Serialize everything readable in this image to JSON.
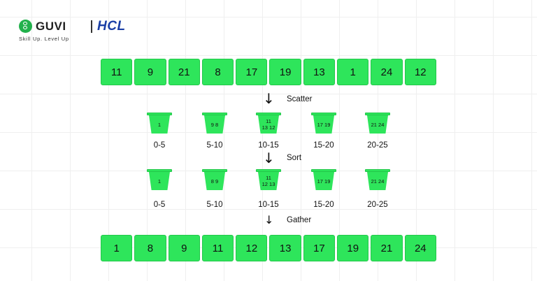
{
  "header": {
    "brand": "GUVI",
    "partner": "HCL",
    "tagline": "Skill Up. Level Up"
  },
  "colors": {
    "cell": "#2ee55b",
    "border": "#22c84a",
    "hcl": "#1a3fa6",
    "guvi": "#22b14c"
  },
  "input_array": [
    "11",
    "9",
    "21",
    "8",
    "17",
    "19",
    "13",
    "1",
    "24",
    "12"
  ],
  "steps": {
    "scatter": "Scatter",
    "sort": "Sort",
    "gather": "Gather"
  },
  "scatter_buckets": [
    {
      "line1": "1",
      "line2": "",
      "range": "0-5"
    },
    {
      "line1": "9 8",
      "line2": "",
      "range": "5-10"
    },
    {
      "line1": "11",
      "line2": "13 12",
      "range": "10-15"
    },
    {
      "line1": "17 19",
      "line2": "",
      "range": "15-20"
    },
    {
      "line1": "21 24",
      "line2": "",
      "range": "20-25"
    }
  ],
  "sorted_buckets": [
    {
      "line1": "1",
      "line2": "",
      "range": "0-5"
    },
    {
      "line1": "8 9",
      "line2": "",
      "range": "5-10"
    },
    {
      "line1": "11",
      "line2": "12 13",
      "range": "10-15"
    },
    {
      "line1": "17 19",
      "line2": "",
      "range": "15-20"
    },
    {
      "line1": "21 24",
      "line2": "",
      "range": "20-25"
    }
  ],
  "output_array": [
    "1",
    "8",
    "9",
    "11",
    "12",
    "13",
    "17",
    "19",
    "21",
    "24"
  ]
}
